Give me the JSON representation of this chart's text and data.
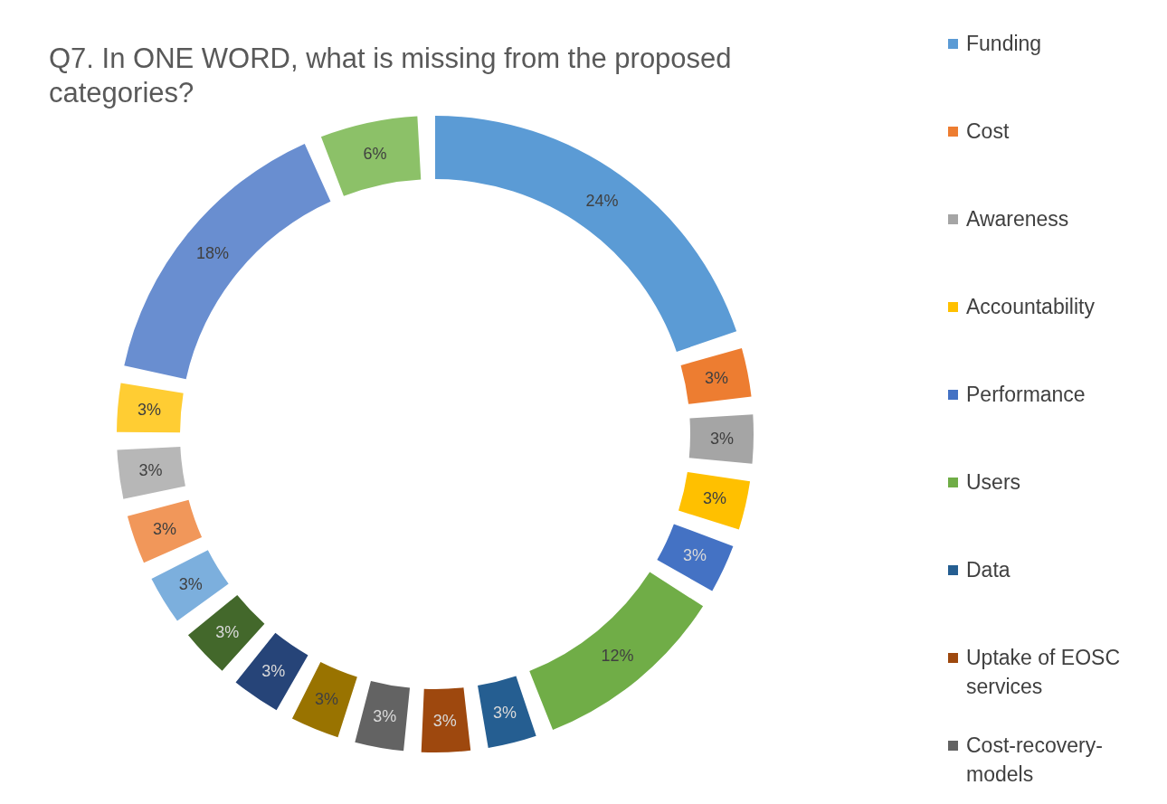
{
  "chart_data": {
    "type": "donut",
    "title": "Q7. In ONE WORD, what is missing from the proposed categories?",
    "categories": [
      "Funding",
      "Cost",
      "Awareness",
      "Accountability",
      "Performance",
      "Users",
      "Data",
      "Uptake of EOSC services",
      "Cost-recovery-models",
      null,
      null,
      null,
      null,
      null,
      null,
      null,
      null,
      null
    ],
    "values": [
      24,
      3,
      3,
      3,
      3,
      12,
      3,
      3,
      3,
      3,
      3,
      3,
      3,
      3,
      3,
      3,
      18,
      6
    ],
    "colors": [
      "#5b9bd5",
      "#ed7d31",
      "#a5a5a5",
      "#ffc000",
      "#4472c4",
      "#70ad47",
      "#255e91",
      "#9e480e",
      "#636363",
      "#997300",
      "#264478",
      "#43682b",
      "#7cafdd",
      "#f1975a",
      "#b7b7b7",
      "#ffcd33",
      "#698ed0",
      "#8cc168"
    ],
    "value_labels": [
      "24%",
      "3%",
      "3%",
      "3%",
      "3%",
      "12%",
      "3%",
      "3%",
      "3%",
      "3%",
      "3%",
      "3%",
      "3%",
      "3%",
      "3%",
      "3%",
      "18%",
      "6%"
    ],
    "legend": "right"
  }
}
